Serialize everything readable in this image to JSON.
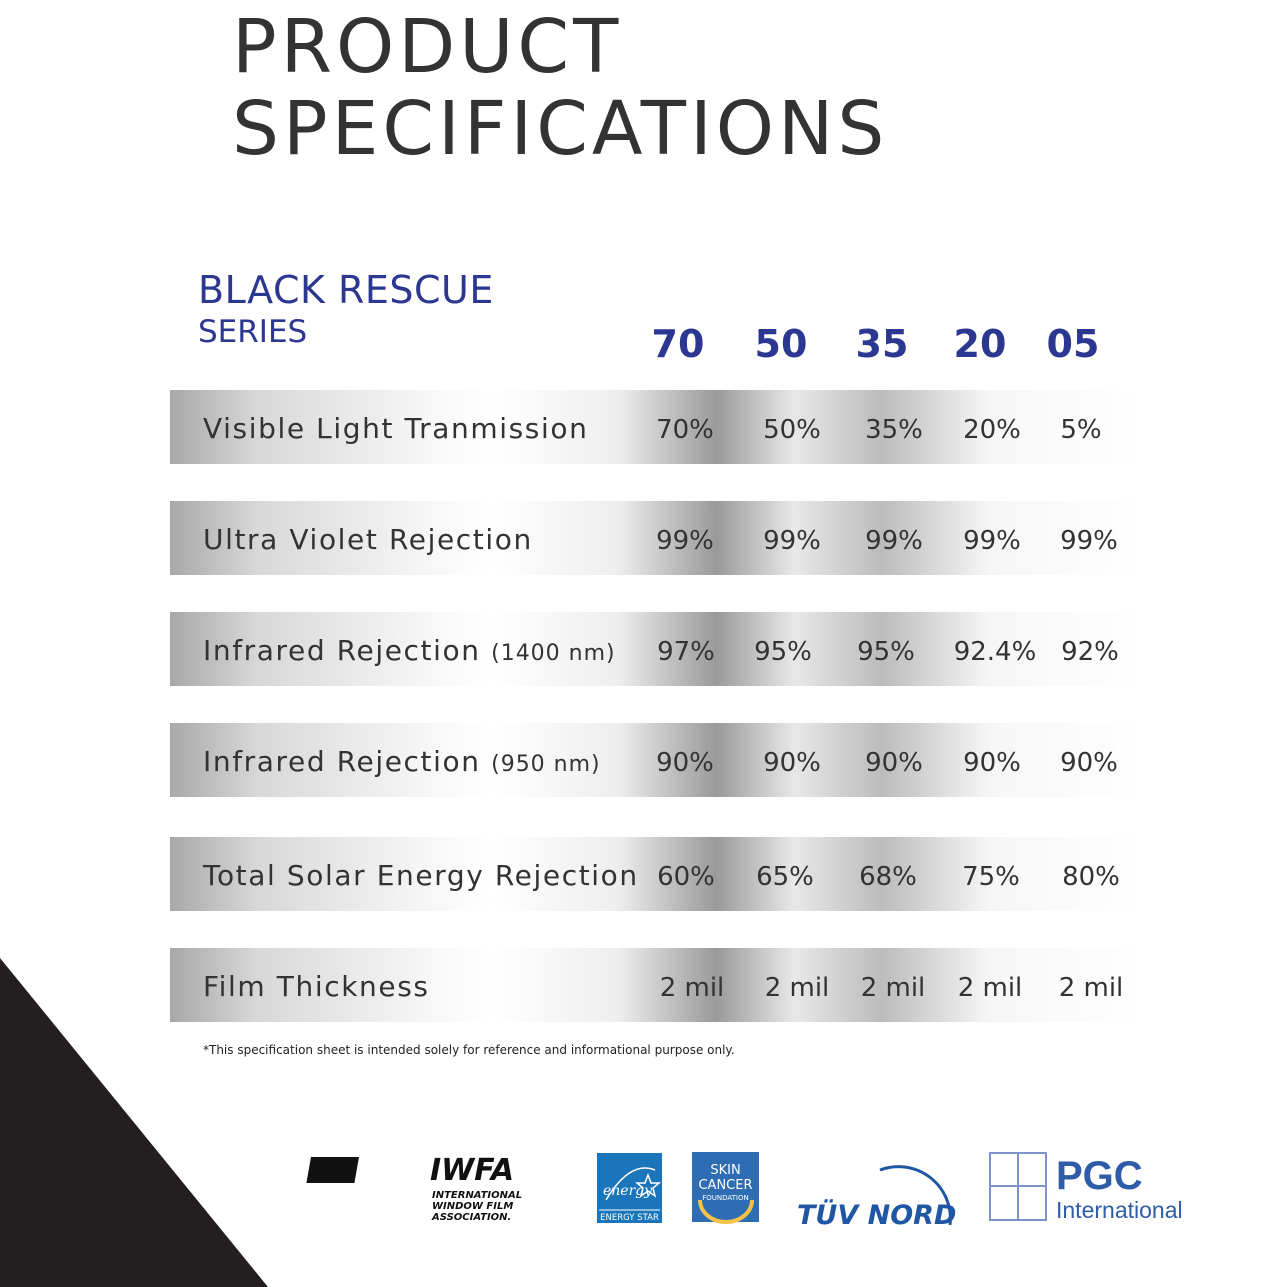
{
  "title": {
    "line1": "PRODUCT",
    "line2": "SPECIFICATIONS"
  },
  "series": {
    "name": "BLACK RESCUE",
    "sub": "SERIES"
  },
  "columns": [
    "70",
    "50",
    "35",
    "20",
    "05"
  ],
  "rows": [
    {
      "label": "Visible Light Tranmission",
      "unit": "",
      "values": [
        "70%",
        "50%",
        "35%",
        "20%",
        "5%"
      ]
    },
    {
      "label": "Ultra Violet Rejection",
      "unit": "",
      "values": [
        "99%",
        "99%",
        "99%",
        "99%",
        "99%"
      ]
    },
    {
      "label": "Infrared Rejection",
      "unit": "(1400 nm)",
      "values": [
        "97%",
        "95%",
        "95%",
        "92.4%",
        "92%"
      ]
    },
    {
      "label": "Infrared Rejection",
      "unit": "(950 nm)",
      "values": [
        "90%",
        "90%",
        "90%",
        "90%",
        "90%"
      ]
    },
    {
      "label": "Total Solar Energy Rejection",
      "unit": "",
      "values": [
        "60%",
        "65%",
        "68%",
        "75%",
        "80%"
      ]
    },
    {
      "label": "Film Thickness",
      "unit": "",
      "values": [
        "2 mil",
        "2 mil",
        "2 mil",
        "2 mil",
        "2 mil"
      ]
    }
  ],
  "note": "*This specification sheet is intended solely for reference and informational purpose only.",
  "logos": {
    "iwfa": {
      "mark": "IWFA",
      "line1": "INTERNATIONAL",
      "line2": "WINDOW FILM",
      "line3": "ASSOCIATION."
    },
    "energy_star": {
      "script": "energy",
      "label": "ENERGY STAR"
    },
    "skin_cancer": {
      "line1": "SKIN",
      "line2": "CANCER",
      "line3": "FOUNDATION"
    },
    "tuv": {
      "label": "TÜV NORD"
    },
    "pgc": {
      "name": "PGC",
      "sub": "International"
    }
  },
  "colors": {
    "accent": "#2b3790",
    "text": "#333333",
    "corner": "#231f20"
  }
}
